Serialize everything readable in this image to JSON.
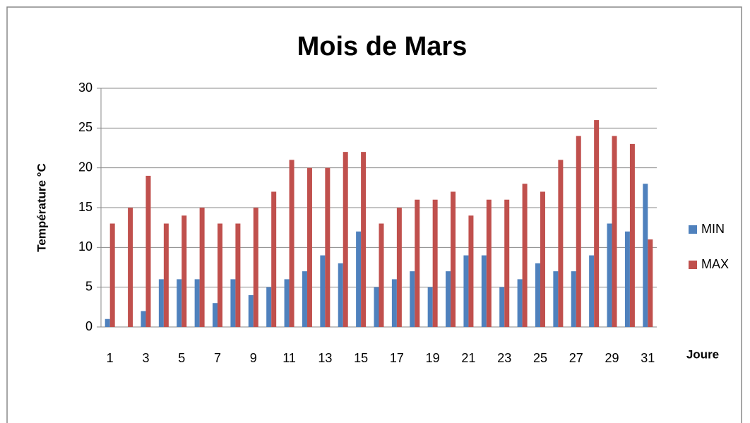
{
  "chart_data": {
    "type": "bar",
    "title": "Mois  de Mars",
    "y_label": "Température °C",
    "x_label": "Joure",
    "categories": [
      1,
      null,
      3,
      null,
      5,
      null,
      7,
      null,
      9,
      null,
      11,
      null,
      13,
      null,
      15,
      null,
      17,
      null,
      19,
      null,
      21,
      null,
      23,
      null,
      25,
      null,
      27,
      null,
      29,
      null,
      31
    ],
    "series": [
      {
        "name": "MIN",
        "color": "#4f81bd",
        "values": [
          1,
          0,
          2,
          6,
          6,
          6,
          3,
          6,
          4,
          5,
          6,
          7,
          9,
          8,
          12,
          5,
          6,
          7,
          5,
          7,
          9,
          9,
          5,
          6,
          8,
          7,
          7,
          9,
          13,
          12,
          18
        ]
      },
      {
        "name": "MAX",
        "color": "#c0504d",
        "values": [
          13,
          15,
          19,
          13,
          14,
          15,
          13,
          13,
          15,
          17,
          21,
          20,
          20,
          22,
          22,
          13,
          15,
          16,
          16,
          17,
          14,
          16,
          16,
          18,
          17,
          21,
          24,
          26,
          24,
          23,
          11
        ]
      }
    ],
    "ylim": [
      0,
      30
    ],
    "yticks": [
      0,
      5,
      10,
      15,
      20,
      25,
      30
    ],
    "grid": true,
    "legend": "right"
  }
}
